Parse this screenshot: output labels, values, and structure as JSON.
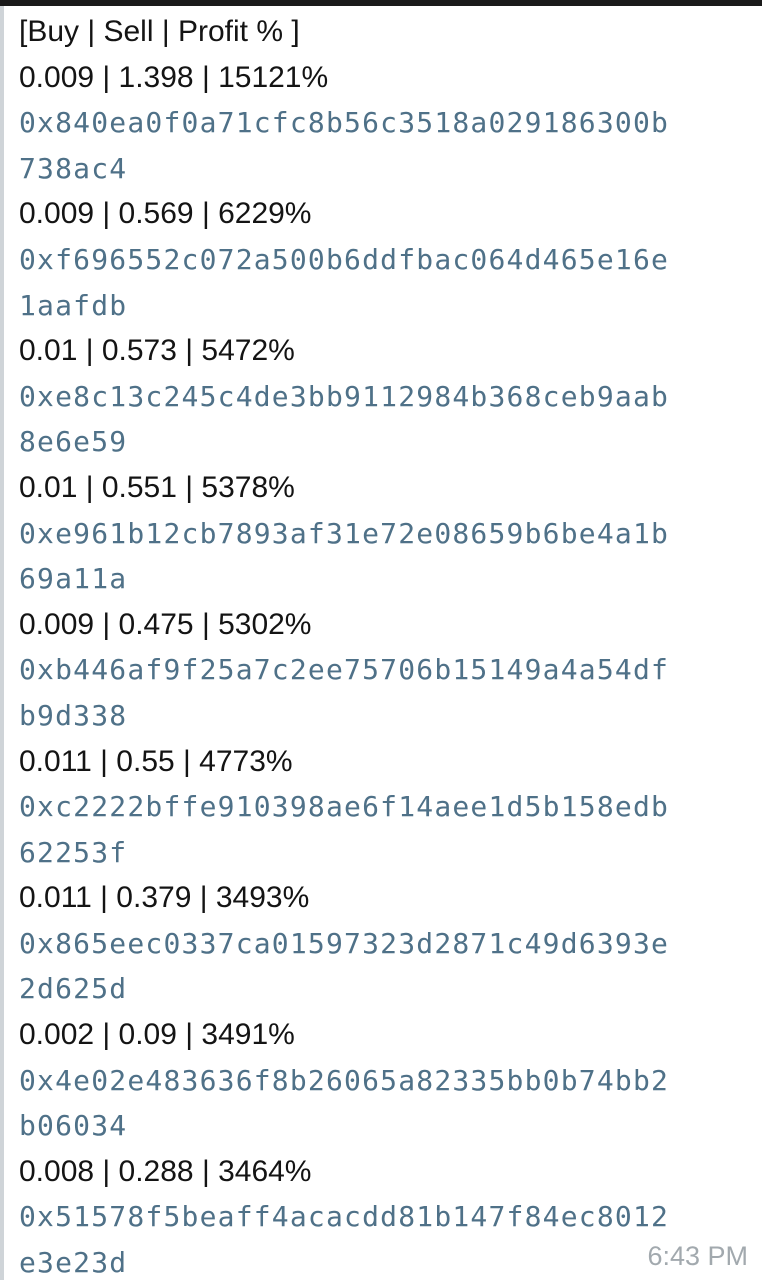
{
  "message": {
    "header": "[Buy | Sell | Profit % ]",
    "entries": [
      {
        "stats": "0.009 | 1.398 | 15121%",
        "address": [
          "0x840ea0f0a71cfc8b56c3518a029186300b",
          "738ac4"
        ]
      },
      {
        "stats": "0.009 | 0.569 | 6229%",
        "address": [
          "0xf696552c072a500b6ddfbac064d465e16e",
          "1aafdb"
        ]
      },
      {
        "stats": "0.01 | 0.573 | 5472%",
        "address": [
          "0xe8c13c245c4de3bb9112984b368ceb9aab",
          "8e6e59"
        ]
      },
      {
        "stats": "0.01 | 0.551 | 5378%",
        "address": [
          "0xe961b12cb7893af31e72e08659b6be4a1b",
          "69a11a"
        ]
      },
      {
        "stats": "0.009 | 0.475 | 5302%",
        "address": [
          "0xb446af9f25a7c2ee75706b15149a4a54df",
          "b9d338"
        ]
      },
      {
        "stats": "0.011 | 0.55 | 4773%",
        "address": [
          "0xc2222bffe910398ae6f14aee1d5b158edb",
          "62253f"
        ]
      },
      {
        "stats": "0.011 | 0.379 | 3493%",
        "address": [
          "0x865eec0337ca01597323d2871c49d6393e",
          "2d625d"
        ]
      },
      {
        "stats": "0.002 | 0.09 | 3491%",
        "address": [
          "0x4e02e483636f8b26065a82335bb0b74bb2",
          "b06034"
        ]
      },
      {
        "stats": "0.008 | 0.288 | 3464%",
        "address": [
          "0x51578f5beaff4acacdd81b147f84ec8012",
          "e3e23d"
        ]
      }
    ],
    "timestamp": "6:43 PM"
  }
}
